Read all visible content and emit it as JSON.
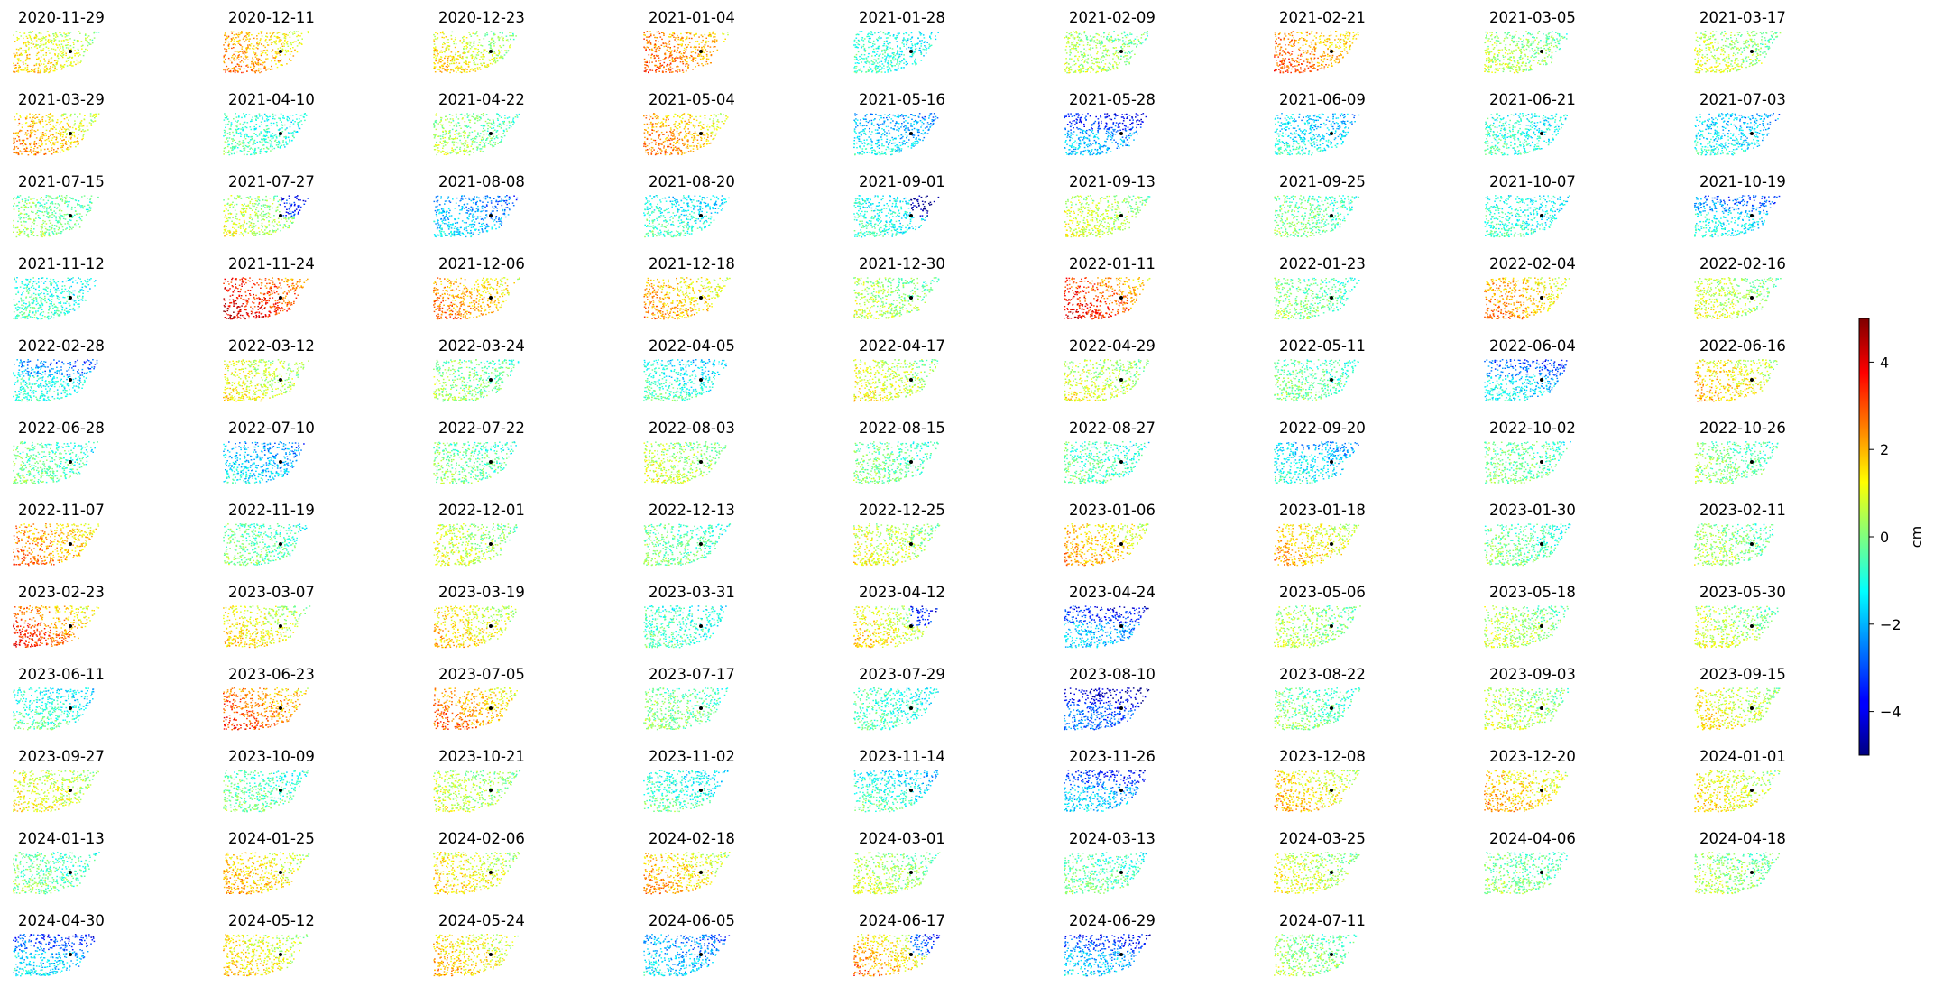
{
  "chart_data": {
    "type": "heatmap",
    "title": "",
    "panels": [
      {
        "date": "2020-11-29",
        "mean": 1.0,
        "grad": 0.8,
        "blue": 0
      },
      {
        "date": "2020-12-11",
        "mean": 1.8,
        "grad": 0.9,
        "blue": 0
      },
      {
        "date": "2020-12-23",
        "mean": 0.9,
        "grad": 0.9,
        "blue": 0
      },
      {
        "date": "2021-01-04",
        "mean": 2.2,
        "grad": 0.8,
        "blue": 0
      },
      {
        "date": "2021-01-28",
        "mean": -1.0,
        "grad": 0.4,
        "blue": 0
      },
      {
        "date": "2021-02-09",
        "mean": 0.2,
        "grad": 0.5,
        "blue": 0
      },
      {
        "date": "2021-02-21",
        "mean": 2.2,
        "grad": 0.8,
        "blue": 0
      },
      {
        "date": "2021-03-05",
        "mean": 0.2,
        "grad": 0.5,
        "blue": 0
      },
      {
        "date": "2021-03-17",
        "mean": 0.4,
        "grad": 0.6,
        "blue": 0
      },
      {
        "date": "2021-03-29",
        "mean": 1.6,
        "grad": 1.0,
        "blue": 0
      },
      {
        "date": "2021-04-10",
        "mean": -0.8,
        "grad": 0.5,
        "blue": 0
      },
      {
        "date": "2021-04-22",
        "mean": 0.0,
        "grad": 0.6,
        "blue": 0
      },
      {
        "date": "2021-05-04",
        "mean": 1.9,
        "grad": 0.9,
        "blue": 0
      },
      {
        "date": "2021-05-16",
        "mean": -1.5,
        "grad": 0.4,
        "blue": 1
      },
      {
        "date": "2021-05-28",
        "mean": -2.2,
        "grad": 0.5,
        "blue": 2
      },
      {
        "date": "2021-06-09",
        "mean": -1.2,
        "grad": 0.4,
        "blue": 1
      },
      {
        "date": "2021-06-21",
        "mean": -1.0,
        "grad": 0.4,
        "blue": 0
      },
      {
        "date": "2021-07-03",
        "mean": -1.3,
        "grad": 0.4,
        "blue": 1
      },
      {
        "date": "2021-07-15",
        "mean": -0.2,
        "grad": 0.5,
        "blue": 0
      },
      {
        "date": "2021-07-27",
        "mean": 0.4,
        "grad": 0.6,
        "blue": 3
      },
      {
        "date": "2021-08-08",
        "mean": -1.8,
        "grad": 0.4,
        "blue": 1
      },
      {
        "date": "2021-08-20",
        "mean": -0.8,
        "grad": 0.4,
        "blue": 1
      },
      {
        "date": "2021-09-01",
        "mean": -1.2,
        "grad": 0.5,
        "blue": 3
      },
      {
        "date": "2021-09-13",
        "mean": 0.5,
        "grad": 0.5,
        "blue": 0
      },
      {
        "date": "2021-09-25",
        "mean": -0.3,
        "grad": 0.5,
        "blue": 0
      },
      {
        "date": "2021-10-07",
        "mean": -1.0,
        "grad": 0.4,
        "blue": 0
      },
      {
        "date": "2021-10-19",
        "mean": -1.4,
        "grad": 0.5,
        "blue": 2
      },
      {
        "date": "2021-11-12",
        "mean": -0.9,
        "grad": 0.4,
        "blue": 0
      },
      {
        "date": "2021-11-24",
        "mean": 3.2,
        "grad": 1.0,
        "blue": 0
      },
      {
        "date": "2021-12-06",
        "mean": 1.9,
        "grad": 0.8,
        "blue": 0
      },
      {
        "date": "2021-12-18",
        "mean": 1.6,
        "grad": 0.8,
        "blue": 0
      },
      {
        "date": "2021-12-30",
        "mean": 0.2,
        "grad": 0.6,
        "blue": 0
      },
      {
        "date": "2022-01-11",
        "mean": 2.8,
        "grad": 1.2,
        "blue": 0
      },
      {
        "date": "2022-01-23",
        "mean": -0.2,
        "grad": 0.5,
        "blue": 0
      },
      {
        "date": "2022-02-04",
        "mean": 1.8,
        "grad": 0.8,
        "blue": 0
      },
      {
        "date": "2022-02-16",
        "mean": 0.5,
        "grad": 0.6,
        "blue": 0
      },
      {
        "date": "2022-02-28",
        "mean": -1.2,
        "grad": 0.5,
        "blue": 2
      },
      {
        "date": "2022-03-12",
        "mean": 0.8,
        "grad": 0.6,
        "blue": 0
      },
      {
        "date": "2022-03-24",
        "mean": -0.1,
        "grad": 0.5,
        "blue": 0
      },
      {
        "date": "2022-04-05",
        "mean": -0.8,
        "grad": 0.5,
        "blue": 1
      },
      {
        "date": "2022-04-17",
        "mean": 0.7,
        "grad": 0.6,
        "blue": 0
      },
      {
        "date": "2022-04-29",
        "mean": 0.6,
        "grad": 0.6,
        "blue": 0
      },
      {
        "date": "2022-05-11",
        "mean": -0.4,
        "grad": 0.5,
        "blue": 0
      },
      {
        "date": "2022-06-04",
        "mean": -1.6,
        "grad": 0.5,
        "blue": 2
      },
      {
        "date": "2022-06-16",
        "mean": 1.3,
        "grad": 0.8,
        "blue": 0
      },
      {
        "date": "2022-06-28",
        "mean": -0.5,
        "grad": 0.5,
        "blue": 0
      },
      {
        "date": "2022-07-10",
        "mean": -1.6,
        "grad": 0.5,
        "blue": 1
      },
      {
        "date": "2022-07-22",
        "mean": -0.3,
        "grad": 0.5,
        "blue": 0
      },
      {
        "date": "2022-08-03",
        "mean": 0.4,
        "grad": 0.6,
        "blue": 0
      },
      {
        "date": "2022-08-15",
        "mean": -0.4,
        "grad": 0.5,
        "blue": 0
      },
      {
        "date": "2022-08-27",
        "mean": -0.6,
        "grad": 0.5,
        "blue": 0
      },
      {
        "date": "2022-09-20",
        "mean": -1.3,
        "grad": 0.5,
        "blue": 1
      },
      {
        "date": "2022-10-02",
        "mean": -0.3,
        "grad": 0.4,
        "blue": 0
      },
      {
        "date": "2022-10-26",
        "mean": -0.2,
        "grad": 0.5,
        "blue": 0
      },
      {
        "date": "2022-11-07",
        "mean": 2.0,
        "grad": 0.8,
        "blue": 0
      },
      {
        "date": "2022-11-19",
        "mean": -0.4,
        "grad": 0.5,
        "blue": 0
      },
      {
        "date": "2022-12-01",
        "mean": 0.5,
        "grad": 0.6,
        "blue": 0
      },
      {
        "date": "2022-12-13",
        "mean": -0.4,
        "grad": 0.5,
        "blue": 0
      },
      {
        "date": "2022-12-25",
        "mean": 0.6,
        "grad": 0.6,
        "blue": 0
      },
      {
        "date": "2023-01-06",
        "mean": 1.6,
        "grad": 0.8,
        "blue": 0
      },
      {
        "date": "2023-01-18",
        "mean": 1.4,
        "grad": 0.8,
        "blue": 0
      },
      {
        "date": "2023-01-30",
        "mean": -0.4,
        "grad": 0.5,
        "blue": 0
      },
      {
        "date": "2023-02-11",
        "mean": 0.0,
        "grad": 0.6,
        "blue": 0
      },
      {
        "date": "2023-02-23",
        "mean": 2.4,
        "grad": 1.3,
        "blue": 0
      },
      {
        "date": "2023-03-07",
        "mean": 1.0,
        "grad": 0.7,
        "blue": 0
      },
      {
        "date": "2023-03-19",
        "mean": 1.2,
        "grad": 0.7,
        "blue": 0
      },
      {
        "date": "2023-03-31",
        "mean": -0.8,
        "grad": 0.4,
        "blue": 0
      },
      {
        "date": "2023-04-12",
        "mean": 0.8,
        "grad": 1.0,
        "blue": 3
      },
      {
        "date": "2023-04-24",
        "mean": -2.2,
        "grad": 0.5,
        "blue": 2
      },
      {
        "date": "2023-05-06",
        "mean": 0.2,
        "grad": 0.5,
        "blue": 0
      },
      {
        "date": "2023-05-18",
        "mean": 0.3,
        "grad": 0.6,
        "blue": 0
      },
      {
        "date": "2023-05-30",
        "mean": 0.4,
        "grad": 0.6,
        "blue": 0
      },
      {
        "date": "2023-06-11",
        "mean": -0.6,
        "grad": 0.5,
        "blue": 1
      },
      {
        "date": "2023-06-23",
        "mean": 2.4,
        "grad": 0.9,
        "blue": 0
      },
      {
        "date": "2023-07-05",
        "mean": 2.0,
        "grad": 0.9,
        "blue": 0
      },
      {
        "date": "2023-07-17",
        "mean": -0.2,
        "grad": 0.5,
        "blue": 0
      },
      {
        "date": "2023-07-29",
        "mean": -0.8,
        "grad": 0.4,
        "blue": 0
      },
      {
        "date": "2023-08-10",
        "mean": -3.0,
        "grad": 0.5,
        "blue": 2
      },
      {
        "date": "2023-08-22",
        "mean": -0.3,
        "grad": 0.5,
        "blue": 0
      },
      {
        "date": "2023-09-03",
        "mean": 0.3,
        "grad": 0.5,
        "blue": 0
      },
      {
        "date": "2023-09-15",
        "mean": 0.9,
        "grad": 0.7,
        "blue": 0
      },
      {
        "date": "2023-09-27",
        "mean": 0.8,
        "grad": 0.6,
        "blue": 0
      },
      {
        "date": "2023-10-09",
        "mean": -0.5,
        "grad": 0.5,
        "blue": 0
      },
      {
        "date": "2023-10-21",
        "mean": 0.4,
        "grad": 0.6,
        "blue": 0
      },
      {
        "date": "2023-11-02",
        "mean": -0.6,
        "grad": 0.5,
        "blue": 1
      },
      {
        "date": "2023-11-14",
        "mean": -0.8,
        "grad": 0.7,
        "blue": 1
      },
      {
        "date": "2023-11-26",
        "mean": -2.0,
        "grad": 0.5,
        "blue": 2
      },
      {
        "date": "2023-12-08",
        "mean": 1.3,
        "grad": 0.8,
        "blue": 0
      },
      {
        "date": "2023-12-20",
        "mean": 1.5,
        "grad": 0.8,
        "blue": 0
      },
      {
        "date": "2024-01-01",
        "mean": 1.0,
        "grad": 0.7,
        "blue": 0
      },
      {
        "date": "2024-01-13",
        "mean": -0.4,
        "grad": 0.5,
        "blue": 0
      },
      {
        "date": "2024-01-25",
        "mean": 1.4,
        "grad": 0.8,
        "blue": 0
      },
      {
        "date": "2024-02-06",
        "mean": 1.1,
        "grad": 0.7,
        "blue": 0
      },
      {
        "date": "2024-02-18",
        "mean": 1.5,
        "grad": 0.9,
        "blue": 0
      },
      {
        "date": "2024-03-01",
        "mean": 0.3,
        "grad": 0.6,
        "blue": 0
      },
      {
        "date": "2024-03-13",
        "mean": -0.5,
        "grad": 0.5,
        "blue": 0
      },
      {
        "date": "2024-03-25",
        "mean": 0.6,
        "grad": 0.6,
        "blue": 0
      },
      {
        "date": "2024-04-06",
        "mean": -0.2,
        "grad": 0.5,
        "blue": 0
      },
      {
        "date": "2024-04-18",
        "mean": 0.1,
        "grad": 0.5,
        "blue": 0
      },
      {
        "date": "2024-04-30",
        "mean": -1.8,
        "grad": 0.5,
        "blue": 2
      },
      {
        "date": "2024-05-12",
        "mean": 1.1,
        "grad": 0.7,
        "blue": 0
      },
      {
        "date": "2024-05-24",
        "mean": 1.3,
        "grad": 0.7,
        "blue": 0
      },
      {
        "date": "2024-06-05",
        "mean": -1.8,
        "grad": 0.5,
        "blue": 1
      },
      {
        "date": "2024-06-17",
        "mean": 1.4,
        "grad": 1.2,
        "blue": 3
      },
      {
        "date": "2024-06-29",
        "mean": -2.0,
        "grad": 0.5,
        "blue": 2
      },
      {
        "date": "2024-07-11",
        "mean": 0.0,
        "grad": 0.6,
        "blue": 0
      }
    ],
    "colorbar": {
      "label": "cm",
      "colormap": "jet",
      "vmin": -5,
      "vmax": 5,
      "ticks": [
        -4,
        -2,
        0,
        2,
        4
      ],
      "tick_labels": [
        "−4",
        "−2",
        "0",
        "2",
        "4"
      ]
    }
  }
}
